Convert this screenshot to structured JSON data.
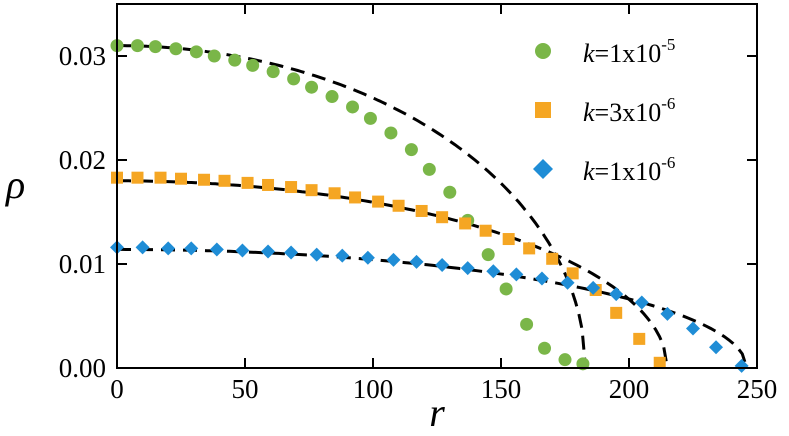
{
  "chart_data": {
    "type": "scatter",
    "xlabel": "r",
    "ylabel": "ρ",
    "xlim": [
      0,
      250
    ],
    "ylim": [
      0,
      0.035
    ],
    "xticks": [
      0,
      50,
      100,
      150,
      200,
      250
    ],
    "yticks": [
      0.0,
      0.01,
      0.02,
      0.03
    ],
    "xtick_labels": [
      "0",
      "50",
      "100",
      "150",
      "200",
      "250"
    ],
    "ytick_labels": [
      "0.00",
      "0.01",
      "0.02",
      "0.03"
    ],
    "grid": false,
    "legend_position": "top-right",
    "series": [
      {
        "name": "k=1x10^-5",
        "legend": {
          "k": "k",
          "base": "=1x10",
          "exp": "-5"
        },
        "marker": "circle",
        "color": "#7ab648",
        "x": [
          0,
          8,
          15,
          23,
          31,
          38,
          46,
          53,
          61,
          69,
          76,
          84,
          92,
          99,
          107,
          115,
          122,
          130,
          137,
          145,
          152,
          160,
          167,
          175,
          182
        ],
        "y": [
          0.031,
          0.031,
          0.0309,
          0.0307,
          0.0304,
          0.03,
          0.0296,
          0.0291,
          0.0285,
          0.0278,
          0.027,
          0.0261,
          0.0251,
          0.024,
          0.0226,
          0.021,
          0.0191,
          0.0169,
          0.0142,
          0.0109,
          0.0076,
          0.0042,
          0.0019,
          0.0008,
          0.0004
        ]
      },
      {
        "name": "k=3x10^-6",
        "legend": {
          "k": "k",
          "base": "=3x10",
          "exp": "-6"
        },
        "marker": "square",
        "color": "#f5a623",
        "x": [
          0,
          8,
          17,
          25,
          34,
          42,
          51,
          59,
          68,
          76,
          85,
          93,
          102,
          110,
          119,
          127,
          136,
          144,
          153,
          161,
          170,
          178,
          187,
          195,
          204,
          212
        ],
        "y": [
          0.0183,
          0.0183,
          0.0183,
          0.0182,
          0.0181,
          0.018,
          0.0178,
          0.0176,
          0.0174,
          0.0171,
          0.0168,
          0.0164,
          0.016,
          0.0156,
          0.0151,
          0.0145,
          0.0139,
          0.0132,
          0.0124,
          0.0115,
          0.0105,
          0.0091,
          0.0075,
          0.0053,
          0.0028,
          0.0005
        ]
      },
      {
        "name": "k=1x10^-6",
        "legend": {
          "k": "k",
          "base": "=1x10",
          "exp": "-6"
        },
        "marker": "diamond",
        "color": "#1f8dd6",
        "x": [
          0,
          10,
          20,
          29,
          39,
          49,
          59,
          68,
          78,
          88,
          98,
          108,
          117,
          127,
          137,
          147,
          156,
          166,
          176,
          186,
          195,
          205,
          215,
          225,
          234,
          244
        ],
        "y": [
          0.0116,
          0.0116,
          0.0115,
          0.0115,
          0.0114,
          0.0113,
          0.0112,
          0.0111,
          0.0109,
          0.0108,
          0.0106,
          0.0104,
          0.0102,
          0.0099,
          0.0096,
          0.0093,
          0.009,
          0.0086,
          0.0082,
          0.0077,
          0.0071,
          0.0063,
          0.0052,
          0.0038,
          0.002,
          0.0002
        ]
      }
    ],
    "fit_curves": [
      {
        "style": "dashed",
        "color": "#000000",
        "rho0": 0.031,
        "R": 183
      },
      {
        "style": "dashed",
        "color": "#000000",
        "rho0": 0.018,
        "R": 215
      },
      {
        "style": "dashed",
        "color": "#000000",
        "rho0": 0.0114,
        "R": 246
      }
    ]
  }
}
